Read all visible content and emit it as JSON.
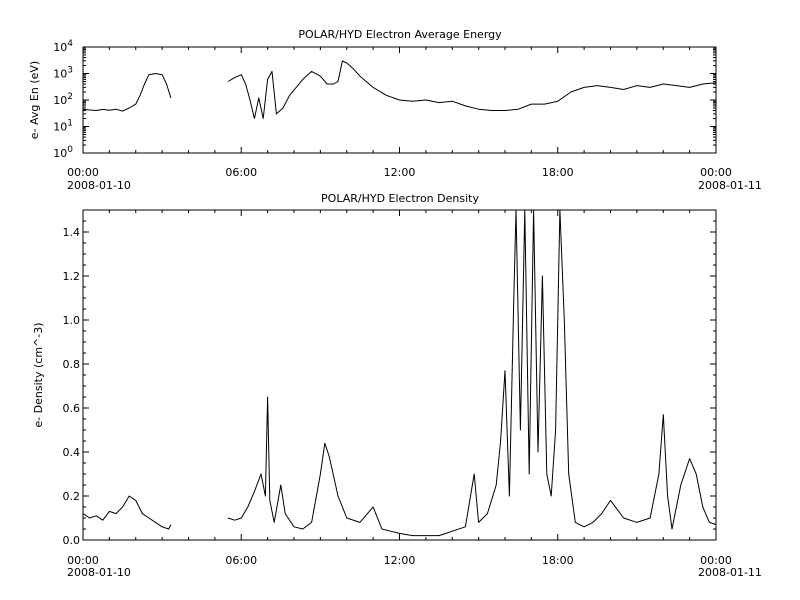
{
  "chart_data": [
    {
      "type": "line",
      "title": "POLAR/HYD  Electron Average Energy",
      "xlabel": "",
      "ylabel": "e- Avg En (eV)",
      "y_scale": "log",
      "ylim": [
        1,
        10000
      ],
      "y_ticks": [
        {
          "value": 1,
          "base": "10",
          "exp": "0"
        },
        {
          "value": 10,
          "base": "10",
          "exp": "1"
        },
        {
          "value": 100,
          "base": "10",
          "exp": "2"
        },
        {
          "value": 1000,
          "base": "10",
          "exp": "3"
        },
        {
          "value": 10000,
          "base": "10",
          "exp": "4"
        }
      ],
      "xlim": [
        "2008-01-10T00:00",
        "2008-01-11T00:00"
      ],
      "x_ticks": [
        "00:00",
        "06:00",
        "12:00",
        "18:00",
        "00:00"
      ],
      "x_start_date": "2008-01-10",
      "x_end_date": "2008-01-11",
      "grid": false,
      "series": [
        {
          "segments": [
            [
              [
                "2008-01-10T00:00",
                45
              ],
              [
                "2008-01-10T00:15",
                42
              ],
              [
                "2008-01-10T00:30",
                40
              ],
              [
                "2008-01-10T00:45",
                44
              ],
              [
                "2008-01-10T01:00",
                41
              ],
              [
                "2008-01-10T01:15",
                45
              ],
              [
                "2008-01-10T01:30",
                38
              ],
              [
                "2008-01-10T01:45",
                50
              ],
              [
                "2008-01-10T02:00",
                70
              ],
              [
                "2008-01-10T02:10",
                150
              ],
              [
                "2008-01-10T02:20",
                400
              ],
              [
                "2008-01-10T02:30",
                900
              ],
              [
                "2008-01-10T02:45",
                1000
              ],
              [
                "2008-01-10T03:00",
                900
              ],
              [
                "2008-01-10T03:10",
                400
              ],
              [
                "2008-01-10T03:20",
                120
              ]
            ],
            [
              [
                "2008-01-10T05:30",
                500
              ],
              [
                "2008-01-10T05:45",
                700
              ],
              [
                "2008-01-10T06:00",
                900
              ],
              [
                "2008-01-10T06:10",
                400
              ],
              [
                "2008-01-10T06:20",
                100
              ],
              [
                "2008-01-10T06:30",
                20
              ],
              [
                "2008-01-10T06:40",
                120
              ],
              [
                "2008-01-10T06:50",
                20
              ],
              [
                "2008-01-10T07:00",
                600
              ],
              [
                "2008-01-10T07:10",
                1200
              ],
              [
                "2008-01-10T07:20",
                30
              ],
              [
                "2008-01-10T07:35",
                50
              ],
              [
                "2008-01-10T07:50",
                150
              ],
              [
                "2008-01-10T08:05",
                300
              ],
              [
                "2008-01-10T08:20",
                600
              ],
              [
                "2008-01-10T08:40",
                1200
              ],
              [
                "2008-01-10T09:00",
                800
              ],
              [
                "2008-01-10T09:15",
                400
              ],
              [
                "2008-01-10T09:30",
                400
              ],
              [
                "2008-01-10T09:40",
                500
              ],
              [
                "2008-01-10T09:50",
                3000
              ],
              [
                "2008-01-10T10:00",
                2500
              ],
              [
                "2008-01-10T10:15",
                1500
              ],
              [
                "2008-01-10T10:30",
                800
              ],
              [
                "2008-01-10T11:00",
                300
              ],
              [
                "2008-01-10T11:30",
                150
              ],
              [
                "2008-01-10T12:00",
                100
              ],
              [
                "2008-01-10T12:30",
                90
              ],
              [
                "2008-01-10T13:00",
                100
              ],
              [
                "2008-01-10T13:30",
                80
              ],
              [
                "2008-01-10T14:00",
                90
              ],
              [
                "2008-01-10T14:30",
                60
              ],
              [
                "2008-01-10T15:00",
                45
              ],
              [
                "2008-01-10T15:30",
                40
              ],
              [
                "2008-01-10T16:00",
                40
              ],
              [
                "2008-01-10T16:30",
                45
              ],
              [
                "2008-01-10T17:00",
                70
              ],
              [
                "2008-01-10T17:30",
                70
              ],
              [
                "2008-01-10T18:00",
                90
              ],
              [
                "2008-01-10T18:30",
                200
              ],
              [
                "2008-01-10T19:00",
                300
              ],
              [
                "2008-01-10T19:30",
                350
              ],
              [
                "2008-01-10T20:00",
                300
              ],
              [
                "2008-01-10T20:30",
                250
              ],
              [
                "2008-01-10T21:00",
                350
              ],
              [
                "2008-01-10T21:30",
                300
              ],
              [
                "2008-01-10T22:00",
                400
              ],
              [
                "2008-01-10T22:30",
                350
              ],
              [
                "2008-01-10T23:00",
                300
              ],
              [
                "2008-01-10T23:30",
                400
              ],
              [
                "2008-01-11T00:00",
                450
              ]
            ]
          ]
        }
      ]
    },
    {
      "type": "line",
      "title": "POLAR/HYD  Electron Density",
      "xlabel": "",
      "ylabel": "e- Density (cm^-3)",
      "ylim": [
        0.0,
        1.5
      ],
      "y_ticks": [
        "0.0",
        "0.2",
        "0.4",
        "0.6",
        "0.8",
        "1.0",
        "1.2",
        "1.4"
      ],
      "xlim": [
        "2008-01-10T00:00",
        "2008-01-11T00:00"
      ],
      "x_ticks": [
        "00:00",
        "06:00",
        "12:00",
        "18:00",
        "00:00"
      ],
      "x_start_date": "2008-01-10",
      "x_end_date": "2008-01-11",
      "grid": false,
      "series": [
        {
          "segments": [
            [
              [
                "2008-01-10T00:00",
                0.12
              ],
              [
                "2008-01-10T00:15",
                0.1
              ],
              [
                "2008-01-10T00:30",
                0.11
              ],
              [
                "2008-01-10T00:45",
                0.09
              ],
              [
                "2008-01-10T01:00",
                0.13
              ],
              [
                "2008-01-10T01:15",
                0.12
              ],
              [
                "2008-01-10T01:30",
                0.15
              ],
              [
                "2008-01-10T01:45",
                0.2
              ],
              [
                "2008-01-10T02:00",
                0.18
              ],
              [
                "2008-01-10T02:15",
                0.12
              ],
              [
                "2008-01-10T02:30",
                0.1
              ],
              [
                "2008-01-10T02:45",
                0.08
              ],
              [
                "2008-01-10T03:00",
                0.06
              ],
              [
                "2008-01-10T03:15",
                0.05
              ],
              [
                "2008-01-10T03:20",
                0.07
              ]
            ],
            [
              [
                "2008-01-10T05:30",
                0.1
              ],
              [
                "2008-01-10T05:45",
                0.09
              ],
              [
                "2008-01-10T06:00",
                0.1
              ],
              [
                "2008-01-10T06:15",
                0.15
              ],
              [
                "2008-01-10T06:30",
                0.22
              ],
              [
                "2008-01-10T06:45",
                0.3
              ],
              [
                "2008-01-10T06:55",
                0.2
              ],
              [
                "2008-01-10T07:00",
                0.65
              ],
              [
                "2008-01-10T07:05",
                0.18
              ],
              [
                "2008-01-10T07:15",
                0.08
              ],
              [
                "2008-01-10T07:30",
                0.25
              ],
              [
                "2008-01-10T07:40",
                0.12
              ],
              [
                "2008-01-10T08:00",
                0.06
              ],
              [
                "2008-01-10T08:20",
                0.05
              ],
              [
                "2008-01-10T08:40",
                0.08
              ],
              [
                "2008-01-10T09:00",
                0.3
              ],
              [
                "2008-01-10T09:10",
                0.44
              ],
              [
                "2008-01-10T09:20",
                0.38
              ],
              [
                "2008-01-10T09:40",
                0.2
              ],
              [
                "2008-01-10T10:00",
                0.1
              ],
              [
                "2008-01-10T10:30",
                0.08
              ],
              [
                "2008-01-10T11:00",
                0.15
              ],
              [
                "2008-01-10T11:20",
                0.05
              ],
              [
                "2008-01-10T11:40",
                0.04
              ],
              [
                "2008-01-10T12:00",
                0.03
              ],
              [
                "2008-01-10T12:30",
                0.02
              ],
              [
                "2008-01-10T13:00",
                0.02
              ],
              [
                "2008-01-10T13:30",
                0.02
              ],
              [
                "2008-01-10T14:00",
                0.04
              ],
              [
                "2008-01-10T14:30",
                0.06
              ],
              [
                "2008-01-10T14:50",
                0.3
              ],
              [
                "2008-01-10T15:00",
                0.08
              ],
              [
                "2008-01-10T15:20",
                0.12
              ],
              [
                "2008-01-10T15:40",
                0.25
              ],
              [
                "2008-01-10T15:50",
                0.45
              ],
              [
                "2008-01-10T16:00",
                0.77
              ],
              [
                "2008-01-10T16:10",
                0.2
              ],
              [
                "2008-01-10T16:20",
                1.1
              ],
              [
                "2008-01-10T16:25",
                1.5
              ],
              [
                "2008-01-10T16:35",
                0.5
              ],
              [
                "2008-01-10T16:45",
                1.5
              ],
              [
                "2008-01-10T16:55",
                0.3
              ],
              [
                "2008-01-10T17:05",
                1.5
              ],
              [
                "2008-01-10T17:15",
                0.4
              ],
              [
                "2008-01-10T17:25",
                1.2
              ],
              [
                "2008-01-10T17:35",
                0.3
              ],
              [
                "2008-01-10T17:45",
                0.2
              ],
              [
                "2008-01-10T17:55",
                0.5
              ],
              [
                "2008-01-10T18:05",
                1.5
              ],
              [
                "2008-01-10T18:15",
                1.0
              ],
              [
                "2008-01-10T18:25",
                0.3
              ],
              [
                "2008-01-10T18:40",
                0.08
              ],
              [
                "2008-01-10T19:00",
                0.06
              ],
              [
                "2008-01-10T19:20",
                0.08
              ],
              [
                "2008-01-10T19:40",
                0.12
              ],
              [
                "2008-01-10T20:00",
                0.18
              ],
              [
                "2008-01-10T20:30",
                0.1
              ],
              [
                "2008-01-10T21:00",
                0.08
              ],
              [
                "2008-01-10T21:30",
                0.1
              ],
              [
                "2008-01-10T21:50",
                0.3
              ],
              [
                "2008-01-10T22:00",
                0.57
              ],
              [
                "2008-01-10T22:10",
                0.2
              ],
              [
                "2008-01-10T22:20",
                0.05
              ],
              [
                "2008-01-10T22:40",
                0.25
              ],
              [
                "2008-01-10T23:00",
                0.37
              ],
              [
                "2008-01-10T23:15",
                0.3
              ],
              [
                "2008-01-10T23:30",
                0.15
              ],
              [
                "2008-01-10T23:45",
                0.08
              ],
              [
                "2008-01-11T00:00",
                0.07
              ]
            ]
          ]
        }
      ]
    }
  ]
}
